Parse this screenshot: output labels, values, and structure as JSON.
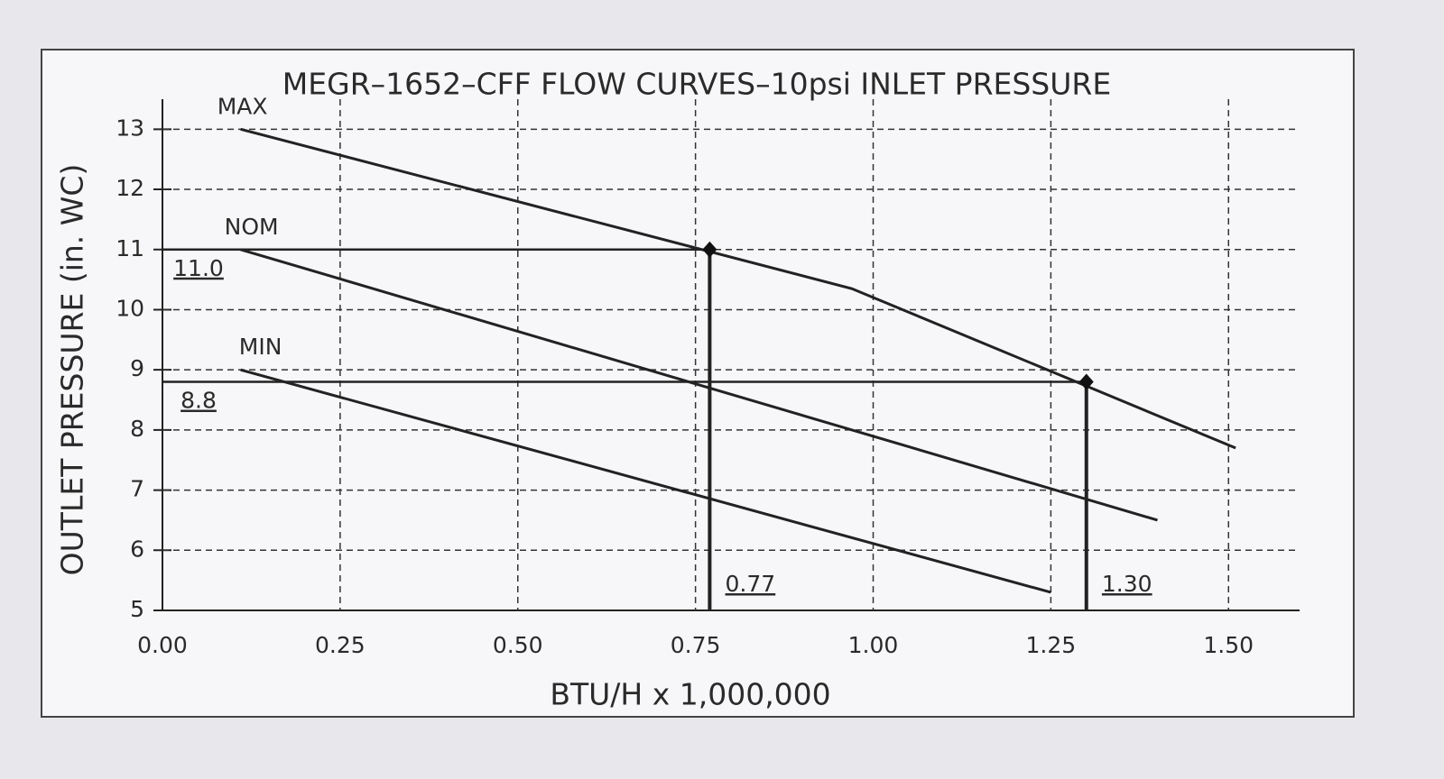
{
  "chart_data": {
    "type": "line",
    "title": "MEGR–1652–CFF FLOW CURVES–10psi INLET PRESSURE",
    "x_label": "BTU/H x 1,000,000",
    "y_label": "OUTLET PRESSURE (in. WC)",
    "xlim": [
      0,
      1.6
    ],
    "ylim": [
      5,
      13.5
    ],
    "xticks": [
      {
        "value": 0,
        "label": "0.00"
      },
      {
        "value": 0.25,
        "label": "0.25"
      },
      {
        "value": 0.5,
        "label": "0.50"
      },
      {
        "value": 0.75,
        "label": "0.75"
      },
      {
        "value": 1,
        "label": "1.00"
      },
      {
        "value": 1.25,
        "label": "1.25"
      },
      {
        "value": 1.5,
        "label": "1.50"
      }
    ],
    "yticks": [
      5,
      6,
      7,
      8,
      9,
      10,
      11,
      12,
      13
    ],
    "grid": true,
    "series": [
      {
        "name": "MAX",
        "color": "#222222",
        "x": [
          0.11,
          0.97,
          1.51
        ],
        "values": [
          13,
          10.35,
          7.7
        ]
      },
      {
        "name": "NOM",
        "color": "#222222",
        "x": [
          0.11,
          1.4
        ],
        "values": [
          11,
          6.5
        ]
      },
      {
        "name": "MIN",
        "color": "#222222",
        "x": [
          0.11,
          1.25
        ],
        "values": [
          9,
          5.3
        ]
      }
    ],
    "reference_points": [
      {
        "x": 0.77,
        "y": 11.0,
        "x_label": "0.77",
        "y_label": "11.0"
      },
      {
        "x": 1.3,
        "y": 8.8,
        "x_label": "1.30",
        "y_label": "8.8"
      }
    ]
  }
}
